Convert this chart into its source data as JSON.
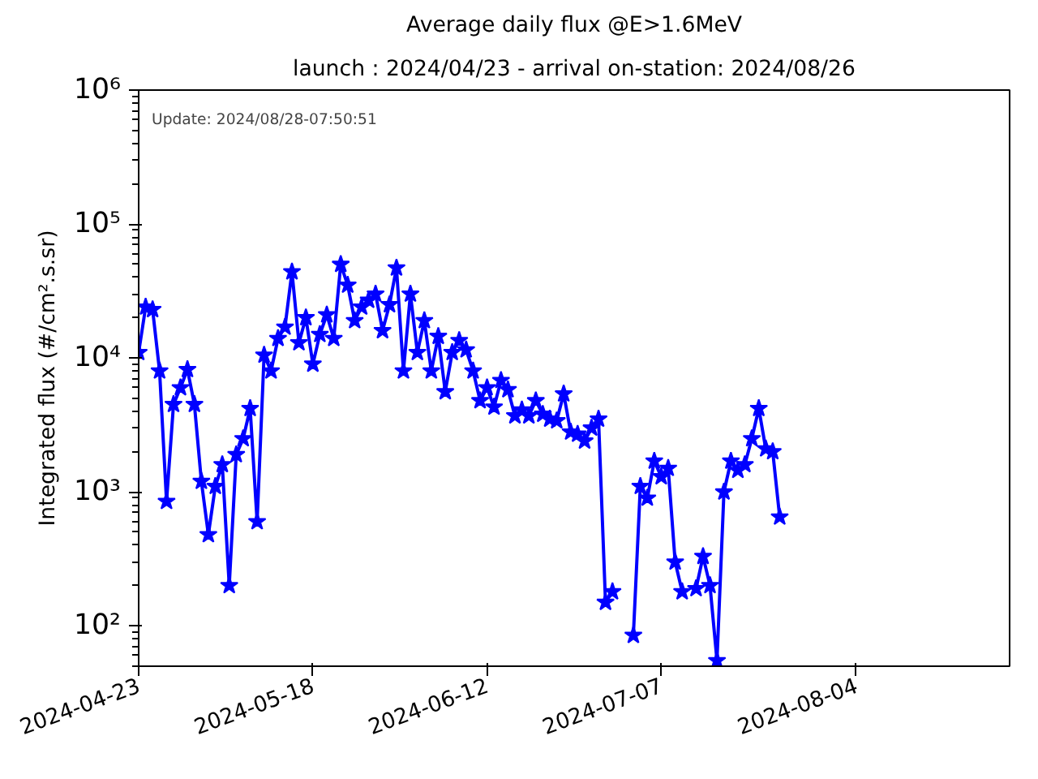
{
  "chart_data": {
    "type": "line",
    "title": "Average daily flux @E>1.6MeV",
    "subtitle": "launch : 2024/04/23 - arrival on-station: 2024/08/26",
    "ylabel": "Integrated flux (#/cm².s.sr)",
    "annotations": [
      "Update: 2024/08/28-07:50:51"
    ],
    "x": [
      "2024-04-23",
      "2024-04-24",
      "2024-04-25",
      "2024-04-26",
      "2024-04-27",
      "2024-04-28",
      "2024-04-29",
      "2024-04-30",
      "2024-05-01",
      "2024-05-02",
      "2024-05-03",
      "2024-05-04",
      "2024-05-05",
      "2024-05-06",
      "2024-05-07",
      "2024-05-08",
      "2024-05-09",
      "2024-05-10",
      "2024-05-11",
      "2024-05-12",
      "2024-05-13",
      "2024-05-14",
      "2024-05-15",
      "2024-05-16",
      "2024-05-17",
      "2024-05-18",
      "2024-05-19",
      "2024-05-20",
      "2024-05-21",
      "2024-05-22",
      "2024-05-23",
      "2024-05-24",
      "2024-05-25",
      "2024-05-26",
      "2024-05-27",
      "2024-05-28",
      "2024-05-29",
      "2024-05-30",
      "2024-05-31",
      "2024-06-01",
      "2024-06-02",
      "2024-06-03",
      "2024-06-04",
      "2024-06-05",
      "2024-06-06",
      "2024-06-07",
      "2024-06-08",
      "2024-06-09",
      "2024-06-10",
      "2024-06-11",
      "2024-06-12",
      "2024-06-13",
      "2024-06-14",
      "2024-06-15",
      "2024-06-16",
      "2024-06-17",
      "2024-06-18",
      "2024-06-19",
      "2024-06-20",
      "2024-06-21",
      "2024-06-22",
      "2024-06-23",
      "2024-06-24",
      "2024-06-25",
      "2024-06-26",
      "2024-06-27",
      "2024-06-28",
      "2024-06-29",
      "2024-06-30",
      "2024-07-01",
      "2024-07-02",
      "2024-07-03",
      "2024-07-04",
      "2024-07-05",
      "2024-07-06",
      "2024-07-07",
      "2024-07-08",
      "2024-07-09",
      "2024-07-10",
      "2024-07-11",
      "2024-07-12",
      "2024-07-13",
      "2024-07-14",
      "2024-07-15",
      "2024-07-16",
      "2024-07-17",
      "2024-07-18",
      "2024-07-19",
      "2024-07-20",
      "2024-07-21",
      "2024-07-22",
      "2024-07-23",
      "2024-07-24"
    ],
    "series": [
      {
        "color": "#0000ff",
        "values": [
          11000,
          24000,
          23000,
          8000,
          850,
          4500,
          6000,
          8200,
          4500,
          1200,
          480,
          1100,
          1600,
          200,
          1900,
          2500,
          4200,
          600,
          10500,
          8000,
          14000,
          17000,
          44000,
          13000,
          20000,
          9000,
          15000,
          21000,
          14000,
          50000,
          35000,
          19000,
          24000,
          27000,
          30000,
          16000,
          25000,
          47000,
          8000,
          30000,
          11000,
          19000,
          8000,
          14500,
          5600,
          11000,
          13500,
          11500,
          8000,
          4800,
          6000,
          4300,
          6800,
          5800,
          3700,
          4100,
          3700,
          4800,
          3800,
          3500,
          3400,
          5400,
          2800,
          2700,
          2400,
          3000,
          3500,
          150,
          180,
          null,
          null,
          85,
          1100,
          900,
          1700,
          1300,
          1500,
          300,
          180,
          null,
          190,
          330,
          200,
          55,
          1000,
          1700,
          1450,
          1600,
          2500,
          4200,
          2100,
          2000,
          650
        ]
      }
    ],
    "marker": "star",
    "line_style": "solid",
    "log": "y",
    "xlim": [
      "2024-04-23",
      "2024-08-26"
    ],
    "xticks": [
      {
        "value": "2024-04-23",
        "label": "2024-04-23"
      },
      {
        "value": "2024-05-18",
        "label": "2024-05-18"
      },
      {
        "value": "2024-06-12",
        "label": "2024-06-12"
      },
      {
        "value": "2024-07-07",
        "label": "2024-07-07"
      },
      {
        "value": "2024-08-04",
        "label": "2024-08-04"
      }
    ],
    "ylim": [
      50,
      1000000
    ],
    "yticks": [
      {
        "value": 100,
        "label": "10²"
      },
      {
        "value": 1000,
        "label": "10³"
      },
      {
        "value": 10000,
        "label": "10⁴"
      },
      {
        "value": 100000,
        "label": "10⁵"
      },
      {
        "value": 1000000,
        "label": "10⁶"
      }
    ]
  }
}
